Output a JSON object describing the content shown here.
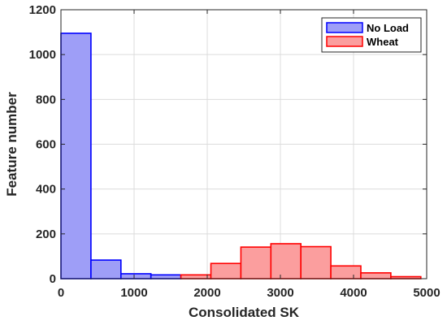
{
  "chart_data": {
    "type": "bar",
    "title": "",
    "xlabel": "Consolidated SK",
    "ylabel": "Feature number",
    "xlim": [
      0,
      5000
    ],
    "ylim": [
      0,
      1200
    ],
    "x_ticks": [
      "0",
      "1000",
      "2000",
      "3000",
      "4000",
      "5000"
    ],
    "y_ticks": [
      "0",
      "200",
      "400",
      "600",
      "800",
      "1000",
      "1200"
    ],
    "grid": true,
    "legend_position": "top-right",
    "series": [
      {
        "name": "No Load",
        "color": "#0000ff",
        "fill": "#9e9ef7",
        "bin_edges": [
          0,
          410,
          820,
          1230,
          1640
        ],
        "values": [
          1095,
          83,
          22,
          17
        ]
      },
      {
        "name": "Wheat",
        "color": "#ff0000",
        "fill": "#fb9e9e",
        "bin_edges": [
          1640,
          2050,
          2460,
          2870,
          3280,
          3690,
          4100,
          4510,
          4920
        ],
        "values": [
          17,
          68,
          141,
          156,
          143,
          57,
          26,
          9
        ]
      }
    ]
  }
}
